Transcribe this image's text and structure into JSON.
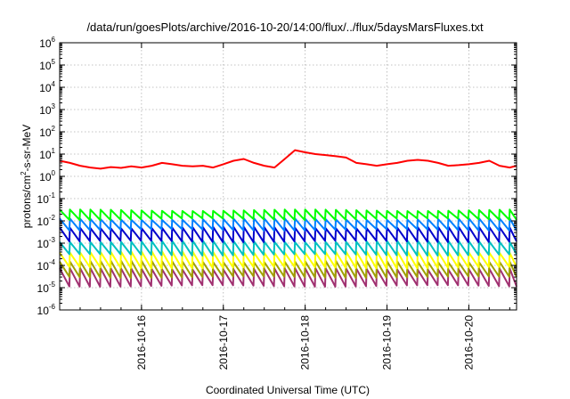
{
  "chart_data": {
    "type": "line",
    "title": "/data/run/goesPlots/archive/2016-10-20/14:00/flux/../flux/5daysMarsFluxes.txt",
    "xlabel": "Coordinated Universal Time (UTC)",
    "ylabel": {
      "base": "protons/cm",
      "sup": "2",
      "rest": "-s-sr-MeV"
    },
    "yscale": "log",
    "grid": true,
    "xlim": [
      "2016-10-15 00:00",
      "2016-10-20 14:00"
    ],
    "ylim": [
      1e-06,
      1000000.0
    ],
    "x_ticks": [
      "2016-10-16",
      "2016-10-17",
      "2016-10-18",
      "2016-10-19",
      "2016-10-20"
    ],
    "y_ticks": [
      {
        "base": "10",
        "exp": "6"
      },
      {
        "base": "10",
        "exp": "5"
      },
      {
        "base": "10",
        "exp": "4"
      },
      {
        "base": "10",
        "exp": "3"
      },
      {
        "base": "10",
        "exp": "2"
      },
      {
        "base": "10",
        "exp": "1"
      },
      {
        "base": "10",
        "exp": "0"
      },
      {
        "base": "10",
        "exp": "-1"
      },
      {
        "base": "10",
        "exp": "-2"
      },
      {
        "base": "10",
        "exp": "-3"
      },
      {
        "base": "10",
        "exp": "-4"
      },
      {
        "base": "10",
        "exp": "-5"
      },
      {
        "base": "10",
        "exp": "-6"
      }
    ],
    "series": [
      {
        "color": "#ff0000",
        "shape": "smooth",
        "x": [
          "2016-10-15 00:00",
          "2016-10-15 03:00",
          "2016-10-15 06:00",
          "2016-10-15 09:00",
          "2016-10-15 12:00",
          "2016-10-15 15:00",
          "2016-10-15 18:00",
          "2016-10-15 21:00",
          "2016-10-16 00:00",
          "2016-10-16 03:00",
          "2016-10-16 06:00",
          "2016-10-16 09:00",
          "2016-10-16 12:00",
          "2016-10-16 15:00",
          "2016-10-16 18:00",
          "2016-10-16 21:00",
          "2016-10-17 00:00",
          "2016-10-17 03:00",
          "2016-10-17 06:00",
          "2016-10-17 09:00",
          "2016-10-17 12:00",
          "2016-10-17 15:00",
          "2016-10-17 18:00",
          "2016-10-17 21:00",
          "2016-10-18 00:00",
          "2016-10-18 03:00",
          "2016-10-18 06:00",
          "2016-10-18 09:00",
          "2016-10-18 12:00",
          "2016-10-18 15:00",
          "2016-10-18 18:00",
          "2016-10-18 21:00",
          "2016-10-19 00:00",
          "2016-10-19 03:00",
          "2016-10-19 06:00",
          "2016-10-19 09:00",
          "2016-10-19 12:00",
          "2016-10-19 15:00",
          "2016-10-19 18:00",
          "2016-10-19 21:00",
          "2016-10-20 00:00",
          "2016-10-20 03:00",
          "2016-10-20 06:00",
          "2016-10-20 09:00",
          "2016-10-20 12:00",
          "2016-10-20 14:00"
        ],
        "y": [
          5,
          4,
          3,
          2.5,
          2.2,
          2.6,
          2.4,
          2.8,
          2.5,
          3,
          4,
          3.5,
          3,
          2.8,
          3,
          2.5,
          3.5,
          5,
          6,
          4,
          3,
          2.5,
          6,
          15,
          12,
          10,
          9,
          8,
          7,
          4,
          3.5,
          3,
          3.5,
          4,
          5,
          5.5,
          5,
          4,
          3,
          3.2,
          3.5,
          4,
          5,
          3,
          2.5,
          3
        ]
      },
      {
        "color": "#00ff00",
        "shape": "sawtooth",
        "peak": 0.03,
        "trough": 0.012
      },
      {
        "color": "#0080ff",
        "shape": "sawtooth",
        "peak": 0.012,
        "trough": 0.004
      },
      {
        "color": "#0000cc",
        "shape": "sawtooth",
        "peak": 0.005,
        "trough": 0.0012
      },
      {
        "color": "#00c0c0",
        "shape": "sawtooth",
        "peak": 0.0012,
        "trough": 0.0003
      },
      {
        "color": "#ffff00",
        "shape": "sawtooth",
        "peak": 0.0004,
        "trough": 8e-05
      },
      {
        "color": "#a0a000",
        "shape": "sawtooth",
        "peak": 0.00015,
        "trough": 3e-05
      },
      {
        "color": "#a03070",
        "shape": "sawtooth",
        "peak": 7e-05,
        "trough": 1.2e-05
      }
    ]
  }
}
